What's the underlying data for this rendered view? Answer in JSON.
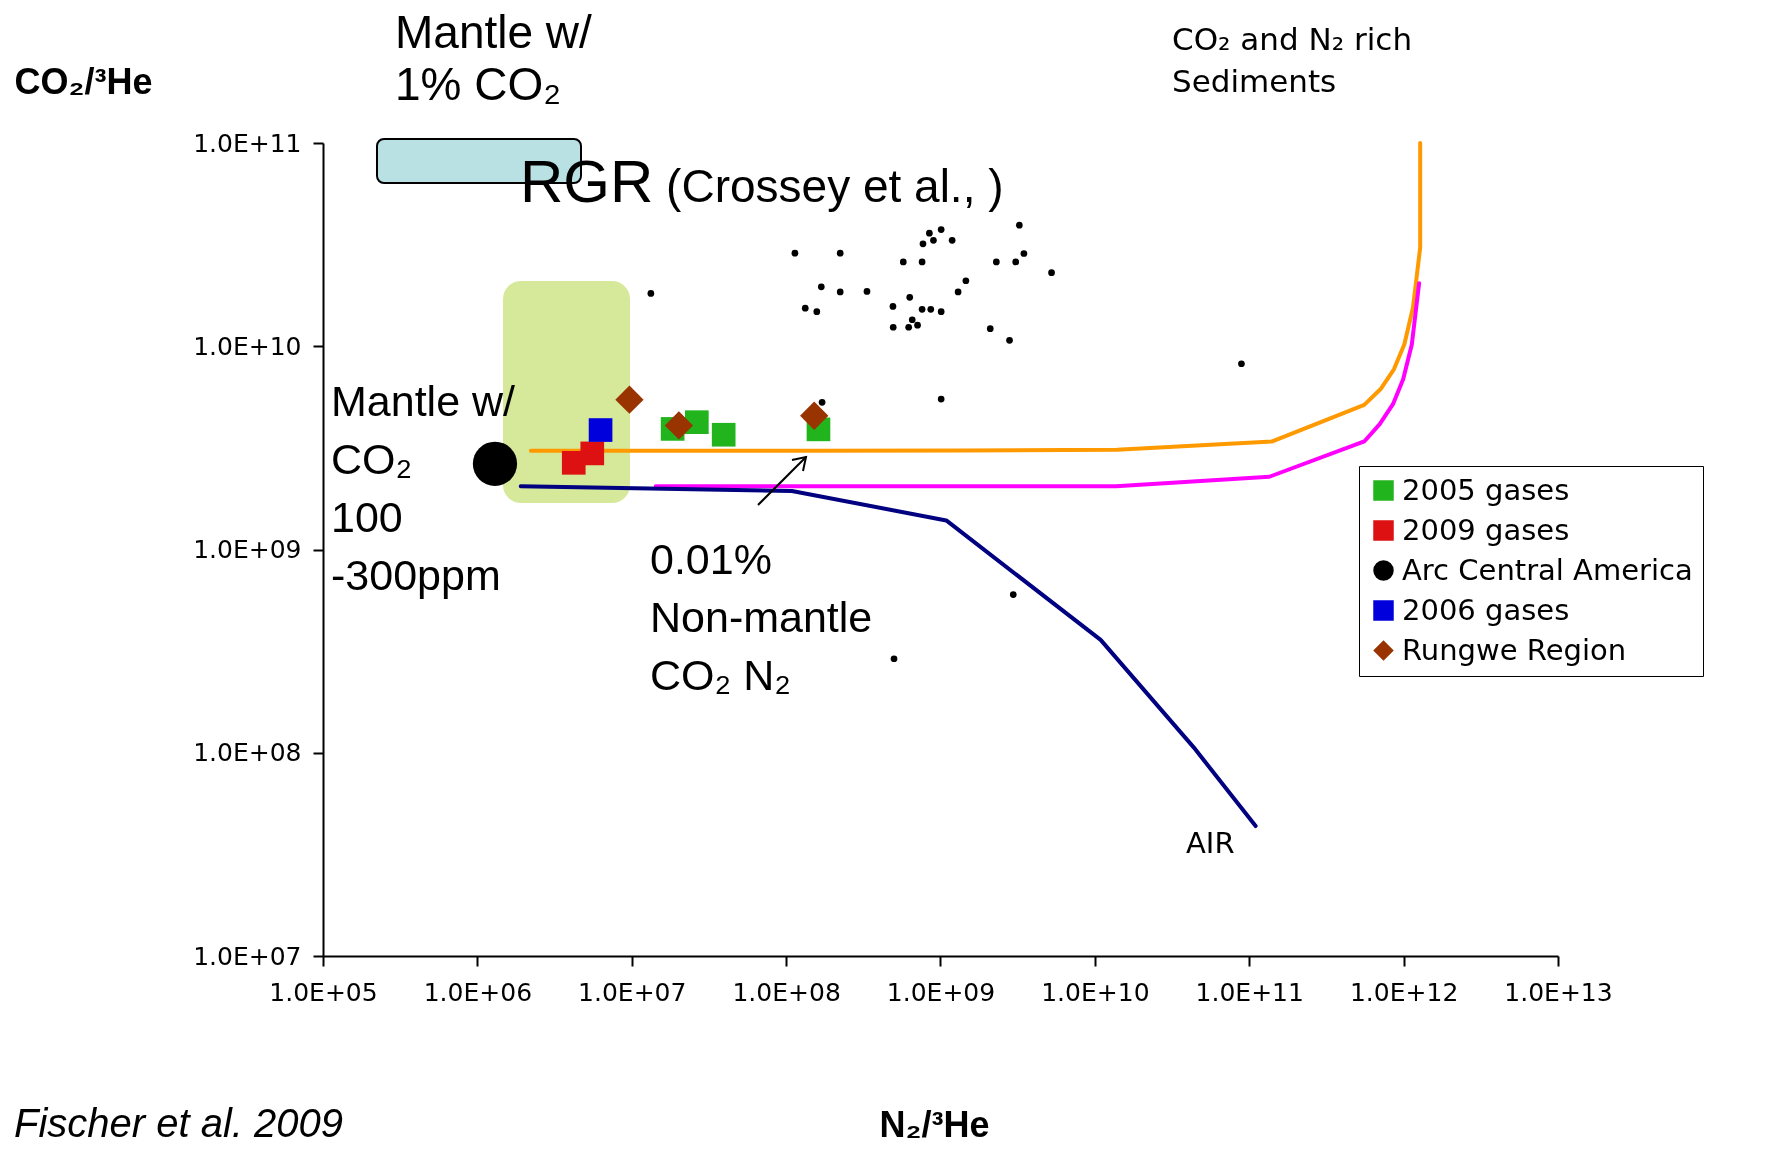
{
  "chart_data": {
    "type": "scatter",
    "xlabel": "N₂/³He",
    "ylabel": "CO₂/³He",
    "xlim": [
      100000,
      10000000000000
    ],
    "ylim": [
      10000000,
      100000000000
    ],
    "log": "xy",
    "grid": false,
    "legend": "right",
    "xticks": [
      {
        "value": 100000,
        "label": "1.0E+05"
      },
      {
        "value": 1000000,
        "label": "1.0E+06"
      },
      {
        "value": 10000000,
        "label": "1.0E+07"
      },
      {
        "value": 100000000,
        "label": "1.0E+08"
      },
      {
        "value": 1000000000,
        "label": "1.0E+09"
      },
      {
        "value": 10000000000,
        "label": "1.0E+10"
      },
      {
        "value": 100000000000,
        "label": "1.0E+11"
      },
      {
        "value": 1000000000000,
        "label": "1.0E+12"
      },
      {
        "value": 10000000000000,
        "label": "1.0E+13"
      }
    ],
    "yticks": [
      {
        "value": 10000000,
        "label": "1.0E+07"
      },
      {
        "value": 100000000,
        "label": "1.0E+08"
      },
      {
        "value": 1000000000,
        "label": "1.0E+09"
      },
      {
        "value": 10000000000,
        "label": "1.0E+10"
      },
      {
        "value": 100000000000,
        "label": "1.0E+11"
      }
    ],
    "series": [
      {
        "type": "line",
        "marker": "none",
        "color": "#ff9900",
        "x": [
          2220000.0,
          15000000.0,
          142000000.0,
          1410000000.0,
          13900000000.0,
          141000000000.0,
          556000000000.0,
          715000000000.0,
          865000000000.0,
          1010000000000.0,
          1150000000000.0,
          1280000000000.0,
          1280000000000.0
        ],
        "values": [
          3060000000.0,
          3060000000.0,
          3060000000.0,
          3070000000.0,
          3100000000.0,
          3400000000.0,
          5150000000.0,
          6200000000.0,
          7700000000.0,
          10200000000.0,
          15500000000.0,
          30600000000.0,
          100000000000.0
        ]
      },
      {
        "type": "line",
        "marker": "none",
        "color": "#ff00ff",
        "x": [
          14300000.0,
          13700000000.0,
          135000000000.0,
          556000000000.0,
          700000000000.0,
          853000000000.0,
          993000000000.0,
          1130000000000.0,
          1260000000000.0
        ],
        "values": [
          2050000000.0,
          2050000000.0,
          2280000000.0,
          3400000000.0,
          4140000000.0,
          5190000000.0,
          6880000000.0,
          10200000000.0,
          20400000000.0
        ]
      },
      {
        "type": "line",
        "marker": "none",
        "color": "#000080",
        "x": [
          1910000.0,
          109000000.0,
          1090000000.0,
          10900000000.0,
          43800000000.0,
          110000000000.0
        ],
        "values": [
          2050000000.0,
          1940000000.0,
          1390000000.0,
          359000000.0,
          106000000.0,
          43600000.0
        ]
      },
      {
        "marker": "circle",
        "color": "#000000",
        "x": [
          1300000.0
        ],
        "values": [
          2640000000.0
        ],
        "sizes": [
          1
        ]
      },
      {
        "name": "2005 gases",
        "marker": "square",
        "color": "#22b41c",
        "x": [
          18400000.0,
          26400000.0,
          39400000.0,
          162000000.0
        ],
        "values": [
          3920000000.0,
          4230000000.0,
          3670000000.0,
          3900000000.0
        ]
      },
      {
        "name": "2009 gases",
        "marker": "square",
        "color": "#dd1111",
        "x": [
          4210000.0,
          5550000.0
        ],
        "values": [
          2670000000.0,
          2970000000.0
        ]
      },
      {
        "name": "Arc Central America",
        "marker": "circle",
        "color": "#000000",
        "x": [
          3240000000.0,
          847000000.0,
          1010000000.0,
          900000000.0,
          1190000000.0,
          770000000.0,
          3470000000.0,
          574000000.0,
          760000000.0,
          2300000000.0,
          3070000000.0,
          5240000000.0,
          169000000.0,
          224000000.0,
          334000000.0,
          1460000000.0,
          1300000000.0,
          133000000.0,
          158000000.0,
          492000000.0,
          632000000.0,
          760000000.0,
          865000000.0,
          1010000000.0,
          494000000.0,
          622000000.0,
          656000000.0,
          710000000.0,
          2100000000.0,
          2800000000.0,
          89000000000.0,
          1010000000.0,
          171000000.0,
          2960000000.0,
          500000000.0,
          13300000.0,
          114000000.0,
          224000000.0
        ],
        "values": [
          39400000000.0,
          36000000000.0,
          37500000000.0,
          33200000000.0,
          33200000000.0,
          31900000000.0,
          28600000000.0,
          26000000000.0,
          26000000000.0,
          26000000000.0,
          26000000000.0,
          23000000000.0,
          19600000000.0,
          18500000000.0,
          18600000000.0,
          21000000000.0,
          18500000000.0,
          15400000000.0,
          14800000000.0,
          15700000000.0,
          17400000000.0,
          15200000000.0,
          15200000000.0,
          14800000000.0,
          12400000000.0,
          12400000000.0,
          13500000000.0,
          12700000000.0,
          12200000000.0,
          10700000000.0,
          8200000000.0,
          5500000000.0,
          5300000000.0,
          600000000.0,
          290000000.0,
          18200000000.0,
          28700000000.0,
          28700000000.0
        ]
      },
      {
        "name": "2006 gases",
        "marker": "square",
        "color": "#0000dd",
        "x": [
          6280000.0
        ],
        "values": [
          3870000000.0
        ]
      },
      {
        "name": "Rungwe Region",
        "marker": "diamond",
        "color": "#993300",
        "x": [
          9660000.0,
          20200000.0,
          152000000.0
        ],
        "values": [
          5460000000.0,
          4080000000.0,
          4550000000.0
        ]
      }
    ],
    "annotations": [
      "Mantle w/\n1% CO₂",
      "RGR (Crossey et al., )",
      "Mantle w/\nCO₂\n100\n-300ppm",
      "0.01%\nNon-mantle\nCO₂ N₂",
      "AIR",
      "CO₂ and N₂ rich\nSediments",
      "Fischer et al. 2009"
    ]
  }
}
